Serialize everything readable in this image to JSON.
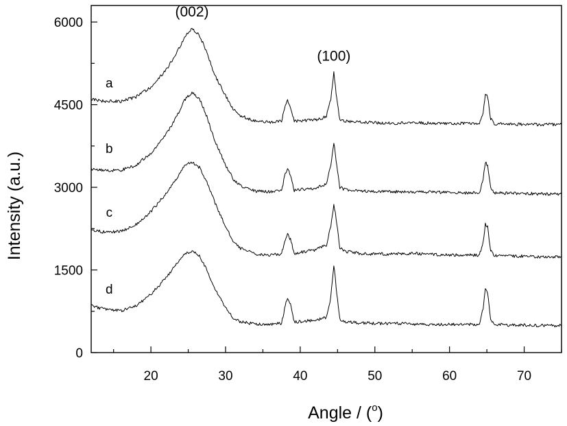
{
  "chart_data": {
    "type": "line",
    "title": "",
    "xlabel": "Angle / (",
    "xlabel_degree": "o",
    "xlabel_close": ")",
    "ylabel": "Intensity (a.u.)",
    "xlim": [
      12,
      75
    ],
    "ylim": [
      0,
      6300
    ],
    "x_ticks": [
      20,
      30,
      40,
      50,
      60,
      70
    ],
    "x_minor_ticks": [
      15,
      25,
      35,
      45,
      55,
      65,
      75
    ],
    "y_ticks": [
      0,
      1500,
      3000,
      4500,
      6000
    ],
    "y_minor_ticks": [
      750,
      2250,
      3750,
      5250
    ],
    "grid": false,
    "legend": "none",
    "annotations": [
      {
        "text": "(002)",
        "x": 25.5,
        "y": 6100
      },
      {
        "text": "(100)",
        "x": 44.5,
        "y": 5300
      }
    ],
    "series": [
      {
        "label": "a",
        "label_pos": [
          13.5,
          4900
        ],
        "points": [
          [
            12,
            4600
          ],
          [
            14,
            4560
          ],
          [
            16,
            4560
          ],
          [
            18,
            4640
          ],
          [
            20,
            4820
          ],
          [
            22,
            5120
          ],
          [
            23.5,
            5450
          ],
          [
            24.5,
            5720
          ],
          [
            25.5,
            5880
          ],
          [
            26.5,
            5760
          ],
          [
            27.5,
            5450
          ],
          [
            28.5,
            5050
          ],
          [
            30,
            4660
          ],
          [
            31,
            4420
          ],
          [
            32,
            4300
          ],
          [
            34,
            4200
          ],
          [
            36,
            4180
          ],
          [
            37.5,
            4200
          ],
          [
            38,
            4480
          ],
          [
            38.3,
            4570
          ],
          [
            38.7,
            4450
          ],
          [
            39.2,
            4200
          ],
          [
            40,
            4210
          ],
          [
            42,
            4220
          ],
          [
            43.5,
            4280
          ],
          [
            44.1,
            4600
          ],
          [
            44.5,
            5080
          ],
          [
            44.8,
            4700
          ],
          [
            45.3,
            4220
          ],
          [
            46,
            4200
          ],
          [
            48,
            4190
          ],
          [
            50,
            4170
          ],
          [
            53,
            4160
          ],
          [
            55,
            4180
          ],
          [
            58,
            4160
          ],
          [
            62,
            4160
          ],
          [
            64,
            4160
          ],
          [
            64.5,
            4350
          ],
          [
            64.8,
            4710
          ],
          [
            65.1,
            4650
          ],
          [
            65.5,
            4250
          ],
          [
            66,
            4150
          ],
          [
            68,
            4150
          ],
          [
            70,
            4140
          ],
          [
            72,
            4140
          ],
          [
            75,
            4140
          ]
        ]
      },
      {
        "label": "b",
        "label_pos": [
          13.5,
          3710
        ],
        "points": [
          [
            12,
            3330
          ],
          [
            14,
            3300
          ],
          [
            16,
            3310
          ],
          [
            18,
            3400
          ],
          [
            20,
            3620
          ],
          [
            22,
            3950
          ],
          [
            23.5,
            4300
          ],
          [
            24.5,
            4580
          ],
          [
            25.5,
            4720
          ],
          [
            26.5,
            4620
          ],
          [
            27.5,
            4280
          ],
          [
            28.5,
            3860
          ],
          [
            30,
            3410
          ],
          [
            31,
            3150
          ],
          [
            32,
            3030
          ],
          [
            34,
            2930
          ],
          [
            36,
            2920
          ],
          [
            37.5,
            2940
          ],
          [
            38,
            3250
          ],
          [
            38.3,
            3350
          ],
          [
            38.7,
            3200
          ],
          [
            39.2,
            2940
          ],
          [
            40,
            2960
          ],
          [
            42,
            2980
          ],
          [
            43.5,
            3060
          ],
          [
            44.1,
            3400
          ],
          [
            44.5,
            3820
          ],
          [
            44.8,
            3500
          ],
          [
            45.3,
            3000
          ],
          [
            46,
            2960
          ],
          [
            48,
            2940
          ],
          [
            50,
            2920
          ],
          [
            53,
            2920
          ],
          [
            55,
            2920
          ],
          [
            58,
            2910
          ],
          [
            62,
            2900
          ],
          [
            64,
            2900
          ],
          [
            64.5,
            3150
          ],
          [
            64.8,
            3460
          ],
          [
            65.1,
            3400
          ],
          [
            65.5,
            3000
          ],
          [
            66,
            2900
          ],
          [
            68,
            2890
          ],
          [
            70,
            2890
          ],
          [
            72,
            2880
          ],
          [
            75,
            2880
          ]
        ]
      },
      {
        "label": "c",
        "label_pos": [
          13.5,
          2550
        ],
        "points": [
          [
            12,
            2230
          ],
          [
            14,
            2180
          ],
          [
            16,
            2200
          ],
          [
            18,
            2320
          ],
          [
            20,
            2560
          ],
          [
            22,
            2880
          ],
          [
            23.5,
            3180
          ],
          [
            24.5,
            3400
          ],
          [
            25.5,
            3460
          ],
          [
            26.5,
            3360
          ],
          [
            27.5,
            3100
          ],
          [
            28.5,
            2750
          ],
          [
            30,
            2280
          ],
          [
            31,
            2030
          ],
          [
            32,
            1890
          ],
          [
            34,
            1790
          ],
          [
            36,
            1770
          ],
          [
            37.5,
            1790
          ],
          [
            38,
            2050
          ],
          [
            38.3,
            2160
          ],
          [
            38.7,
            2050
          ],
          [
            39.2,
            1800
          ],
          [
            40,
            1820
          ],
          [
            42,
            1860
          ],
          [
            43.5,
            1950
          ],
          [
            44.1,
            2300
          ],
          [
            44.5,
            2680
          ],
          [
            44.8,
            2450
          ],
          [
            45.3,
            1900
          ],
          [
            46,
            1840
          ],
          [
            48,
            1800
          ],
          [
            50,
            1790
          ],
          [
            53,
            1790
          ],
          [
            55,
            1800
          ],
          [
            58,
            1780
          ],
          [
            62,
            1770
          ],
          [
            64,
            1770
          ],
          [
            64.5,
            2000
          ],
          [
            64.8,
            2330
          ],
          [
            65.1,
            2280
          ],
          [
            65.5,
            1850
          ],
          [
            66,
            1760
          ],
          [
            68,
            1750
          ],
          [
            70,
            1750
          ],
          [
            72,
            1740
          ],
          [
            75,
            1740
          ]
        ]
      },
      {
        "label": "d",
        "label_pos": [
          13.5,
          1160
        ],
        "points": [
          [
            12,
            850
          ],
          [
            14,
            780
          ],
          [
            16,
            760
          ],
          [
            18,
            850
          ],
          [
            20,
            1060
          ],
          [
            22,
            1350
          ],
          [
            23.5,
            1620
          ],
          [
            24.5,
            1780
          ],
          [
            25.5,
            1840
          ],
          [
            26.5,
            1760
          ],
          [
            27.5,
            1500
          ],
          [
            28.5,
            1180
          ],
          [
            30,
            820
          ],
          [
            31,
            640
          ],
          [
            32,
            560
          ],
          [
            34,
            520
          ],
          [
            36,
            510
          ],
          [
            37.5,
            530
          ],
          [
            38,
            850
          ],
          [
            38.3,
            1000
          ],
          [
            38.7,
            880
          ],
          [
            39.2,
            560
          ],
          [
            40,
            560
          ],
          [
            42,
            590
          ],
          [
            43.5,
            640
          ],
          [
            44.1,
            1000
          ],
          [
            44.5,
            1600
          ],
          [
            44.8,
            1200
          ],
          [
            45.3,
            600
          ],
          [
            46,
            560
          ],
          [
            48,
            540
          ],
          [
            50,
            530
          ],
          [
            53,
            530
          ],
          [
            55,
            520
          ],
          [
            58,
            510
          ],
          [
            62,
            510
          ],
          [
            64,
            510
          ],
          [
            64.5,
            800
          ],
          [
            64.8,
            1180
          ],
          [
            65.1,
            1100
          ],
          [
            65.5,
            600
          ],
          [
            66,
            510
          ],
          [
            68,
            500
          ],
          [
            70,
            500
          ],
          [
            72,
            490
          ],
          [
            75,
            490
          ]
        ]
      }
    ]
  }
}
